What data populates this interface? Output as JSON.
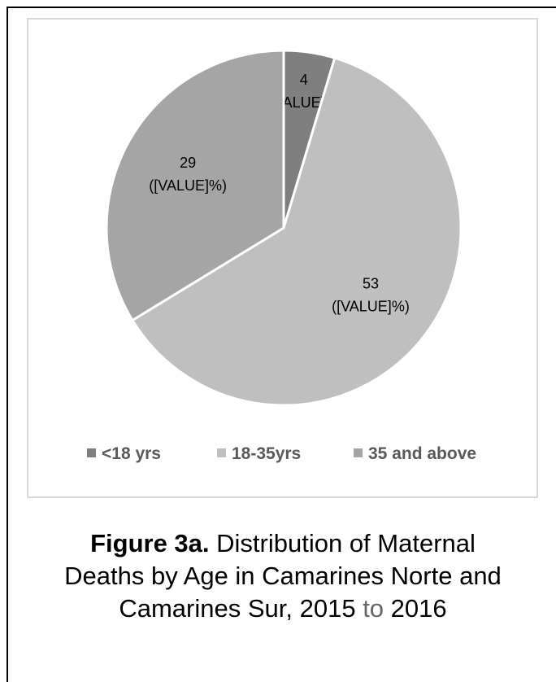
{
  "chart_data": {
    "type": "pie",
    "categories": [
      "<18 yrs",
      "18-35yrs",
      "35 and above"
    ],
    "values": [
      4,
      53,
      29
    ],
    "data_labels": [
      "4",
      "53",
      "29"
    ],
    "data_label_suffix": "([VALUE]%)",
    "colors": [
      "#7f7f7f",
      "#bfbfbf",
      "#a5a5a5"
    ],
    "legend_position": "bottom",
    "title": ""
  },
  "caption": {
    "prefix_bold": "Figure 3a.",
    "text_line1": " Distribution of Maternal",
    "text_line2": "Deaths by Age in Camarines Norte and",
    "text_line3_a": "Camarines Sur, 2015 ",
    "text_line3_to": "to",
    "text_line3_b": " 2016"
  }
}
